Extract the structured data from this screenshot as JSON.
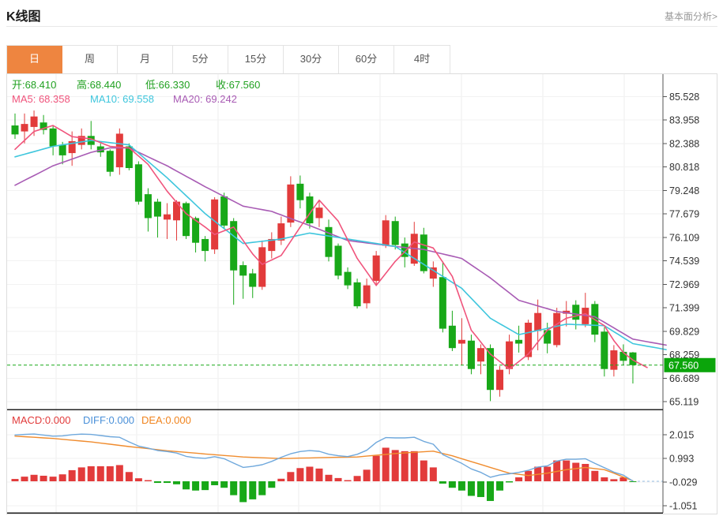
{
  "header": {
    "title": "K线图",
    "link": "基本面分析>"
  },
  "tabs": {
    "items": [
      "日",
      "周",
      "月",
      "5分",
      "15分",
      "30分",
      "60分",
      "4时"
    ],
    "selected_index": 0
  },
  "legend": {
    "ohlc": [
      {
        "label": "开:",
        "value": "68.410"
      },
      {
        "label": "高:",
        "value": "68.440"
      },
      {
        "label": "低:",
        "value": "66.330"
      },
      {
        "label": "收:",
        "value": "67.560"
      }
    ],
    "ma": [
      {
        "label": "MA5: ",
        "value": "68.358",
        "color": "#f0547c"
      },
      {
        "label": "MA10: ",
        "value": "69.558",
        "color": "#3ec6dd"
      },
      {
        "label": "MA20: ",
        "value": "69.242",
        "color": "#a85bb4"
      }
    ],
    "macd": [
      {
        "label": "MACD:",
        "value": "0.000",
        "color": "#e23b3b"
      },
      {
        "label": "DIFF:",
        "value": "0.000",
        "color": "#4a90d9"
      },
      {
        "label": "DEA:",
        "value": "0.000",
        "color": "#f0841e"
      }
    ]
  },
  "price_tag": {
    "value": "67.560",
    "bg": "#0ba50b"
  },
  "colors": {
    "up": "#e23b3b",
    "down": "#18a818",
    "ma5": "#f0547c",
    "ma10": "#3ec6dd",
    "ma20": "#a85bb4",
    "diff_line": "#6fa8dc",
    "dea_line": "#f08c2e",
    "ohlc_text": "#21a121",
    "axis": "#555555",
    "grid": "#ececec",
    "tab_active": "#ee8540",
    "dashed_price": "#18a818"
  },
  "chart_data": {
    "type": "candlestick+macd",
    "title": "K线图",
    "y_axis_labels": [
      "85.528",
      "83.958",
      "82.388",
      "80.818",
      "79.248",
      "77.679",
      "76.109",
      "74.539",
      "72.969",
      "71.399",
      "69.829",
      "68.259",
      "66.689",
      "65.119"
    ],
    "y_axis_top_value": 85.528,
    "y_axis_step": 1.5699,
    "macd_axis_labels": [
      "2.015",
      "0.993",
      "-0.029",
      "-1.051"
    ],
    "current_price": 67.56,
    "last_ohlc": {
      "open": 68.41,
      "high": 68.44,
      "low": 66.33,
      "close": 67.56
    },
    "candles": [
      [
        83.6,
        84.4,
        82.7,
        83.0
      ],
      [
        83.2,
        84.4,
        82.4,
        83.7
      ],
      [
        83.5,
        84.6,
        82.9,
        84.2
      ],
      [
        83.8,
        84.3,
        83.0,
        83.3
      ],
      [
        83.4,
        83.6,
        81.6,
        82.2
      ],
      [
        82.3,
        82.5,
        81.0,
        81.6
      ],
      [
        81.75,
        83.2,
        80.9,
        82.55
      ],
      [
        82.3,
        83.4,
        82.0,
        82.9
      ],
      [
        82.9,
        83.9,
        82.0,
        82.3
      ],
      [
        82.2,
        82.4,
        81.5,
        81.8
      ],
      [
        81.9,
        82.0,
        80.2,
        80.5
      ],
      [
        80.8,
        83.4,
        80.3,
        83.05
      ],
      [
        82.2,
        82.4,
        80.6,
        80.75
      ],
      [
        81.0,
        81.2,
        78.3,
        78.5
      ],
      [
        79.0,
        79.4,
        76.5,
        77.4
      ],
      [
        78.5,
        78.7,
        76.1,
        77.5
      ],
      [
        77.3,
        78.4,
        76.0,
        77.65
      ],
      [
        77.25,
        78.6,
        75.9,
        78.5
      ],
      [
        78.4,
        78.5,
        76.0,
        76.2
      ],
      [
        77.4,
        77.5,
        75.1,
        75.75
      ],
      [
        76.0,
        76.2,
        74.5,
        75.2
      ],
      [
        75.3,
        78.8,
        75.0,
        78.65
      ],
      [
        78.85,
        79.1,
        76.7,
        76.9
      ],
      [
        77.2,
        77.4,
        71.6,
        73.9
      ],
      [
        74.25,
        74.5,
        72.0,
        73.55
      ],
      [
        73.7,
        74.0,
        72.05,
        72.8
      ],
      [
        72.8,
        75.9,
        72.6,
        75.45
      ],
      [
        75.2,
        76.45,
        74.7,
        76.0
      ],
      [
        75.9,
        77.5,
        75.6,
        77.05
      ],
      [
        77.1,
        80.2,
        76.8,
        79.65
      ],
      [
        79.7,
        80.25,
        78.05,
        78.6
      ],
      [
        78.85,
        79.1,
        76.7,
        77.05
      ],
      [
        77.4,
        78.6,
        76.8,
        78.1
      ],
      [
        76.8,
        77.3,
        74.5,
        74.8
      ],
      [
        75.55,
        75.7,
        73.3,
        73.55
      ],
      [
        73.8,
        74.1,
        72.65,
        72.9
      ],
      [
        73.1,
        73.35,
        71.35,
        71.5
      ],
      [
        71.7,
        73.35,
        71.35,
        72.9
      ],
      [
        73.2,
        75.2,
        72.85,
        74.9
      ],
      [
        75.55,
        77.6,
        75.4,
        77.25
      ],
      [
        77.2,
        77.5,
        75.3,
        75.6
      ],
      [
        75.7,
        76.1,
        74.1,
        74.8
      ],
      [
        74.35,
        77.15,
        74.2,
        76.35
      ],
      [
        76.3,
        76.75,
        73.7,
        73.85
      ],
      [
        73.35,
        74.5,
        72.8,
        74.1
      ],
      [
        73.45,
        74.5,
        69.75,
        70.0
      ],
      [
        70.2,
        71.2,
        68.5,
        68.7
      ],
      [
        69.0,
        70.7,
        67.55,
        69.25
      ],
      [
        69.2,
        69.6,
        66.95,
        67.3
      ],
      [
        67.8,
        68.95,
        66.95,
        68.7
      ],
      [
        68.7,
        68.95,
        65.15,
        65.9
      ],
      [
        65.9,
        67.5,
        65.45,
        67.25
      ],
      [
        67.3,
        69.6,
        66.95,
        69.15
      ],
      [
        69.25,
        70.2,
        68.4,
        69.0
      ],
      [
        68.1,
        70.6,
        67.9,
        70.4
      ],
      [
        69.85,
        71.95,
        68.55,
        71.05
      ],
      [
        69.9,
        70.4,
        68.35,
        69.0
      ],
      [
        68.9,
        71.4,
        68.75,
        71.05
      ],
      [
        71.0,
        71.85,
        70.15,
        71.2
      ],
      [
        71.6,
        71.9,
        69.95,
        70.6
      ],
      [
        70.3,
        72.4,
        70.1,
        71.4
      ],
      [
        71.65,
        71.85,
        69.1,
        69.6
      ],
      [
        69.8,
        70.1,
        66.8,
        67.3
      ],
      [
        67.25,
        68.9,
        66.8,
        68.55
      ],
      [
        68.45,
        68.95,
        67.55,
        67.85
      ],
      [
        68.41,
        68.44,
        66.33,
        67.56
      ]
    ],
    "ma5_anchors": [
      [
        0,
        82.0
      ],
      [
        2,
        83.2
      ],
      [
        4,
        83.6
      ],
      [
        6,
        82.85
      ],
      [
        8,
        82.7
      ],
      [
        10,
        82.2
      ],
      [
        12,
        82.1
      ],
      [
        14,
        81.0
      ],
      [
        16,
        79.2
      ],
      [
        18,
        77.7
      ],
      [
        20,
        76.8
      ],
      [
        21,
        76.3
      ],
      [
        23,
        76.8
      ],
      [
        25,
        75.0
      ],
      [
        26,
        74.3
      ],
      [
        28,
        74.9
      ],
      [
        30,
        76.8
      ],
      [
        32,
        78.6
      ],
      [
        34,
        77.2
      ],
      [
        36,
        74.7
      ],
      [
        38,
        72.9
      ],
      [
        40,
        74.5
      ],
      [
        42,
        75.8
      ],
      [
        44,
        75.4
      ],
      [
        46,
        73.5
      ],
      [
        48,
        69.9
      ],
      [
        50,
        68.3
      ],
      [
        52,
        67.3
      ],
      [
        54,
        68.3
      ],
      [
        56,
        69.9
      ],
      [
        58,
        70.7
      ],
      [
        60,
        71.0
      ],
      [
        62,
        70.2
      ],
      [
        63,
        69.2
      ],
      [
        64,
        68.4
      ],
      [
        65,
        67.9
      ],
      [
        66.5,
        67.4
      ]
    ],
    "ma10_anchors": [
      [
        0,
        81.5
      ],
      [
        4,
        82.2
      ],
      [
        8,
        82.6
      ],
      [
        12,
        82.3
      ],
      [
        16,
        80.1
      ],
      [
        20,
        77.7
      ],
      [
        24,
        75.7
      ],
      [
        28,
        76.0
      ],
      [
        31,
        76.4
      ],
      [
        36,
        75.9
      ],
      [
        40,
        75.5
      ],
      [
        43,
        74.3
      ],
      [
        47,
        72.7
      ],
      [
        50,
        70.7
      ],
      [
        53,
        69.6
      ],
      [
        58,
        70.3
      ],
      [
        62,
        70.2
      ],
      [
        65,
        69.0
      ],
      [
        68.5,
        68.6
      ]
    ],
    "ma20_anchors": [
      [
        0,
        79.6
      ],
      [
        4,
        80.9
      ],
      [
        8,
        81.8
      ],
      [
        10,
        82.1
      ],
      [
        12,
        82.1
      ],
      [
        16,
        80.9
      ],
      [
        20,
        79.5
      ],
      [
        24,
        78.2
      ],
      [
        27,
        77.85
      ],
      [
        31,
        76.9
      ],
      [
        35,
        75.9
      ],
      [
        40,
        75.5
      ],
      [
        43,
        75.3
      ],
      [
        47,
        74.7
      ],
      [
        50,
        73.4
      ],
      [
        53,
        71.9
      ],
      [
        57,
        71.15
      ],
      [
        61,
        70.8
      ],
      [
        65,
        69.3
      ],
      [
        68.5,
        68.9
      ]
    ],
    "macd_hist": [
      0.1,
      0.2,
      0.28,
      0.24,
      0.2,
      0.3,
      0.48,
      0.6,
      0.65,
      0.65,
      0.65,
      0.7,
      0.4,
      0.13,
      0.05,
      -0.07,
      -0.07,
      -0.13,
      -0.35,
      -0.4,
      -0.38,
      -0.17,
      -0.28,
      -0.6,
      -0.9,
      -0.78,
      -0.6,
      -0.28,
      0.11,
      0.4,
      0.57,
      0.63,
      0.55,
      0.28,
      0.14,
      0.05,
      0.23,
      0.5,
      1.1,
      1.45,
      1.35,
      1.3,
      1.3,
      0.9,
      0.6,
      -0.1,
      -0.28,
      -0.4,
      -0.63,
      -0.68,
      -0.85,
      -0.4,
      -0.05,
      0.17,
      0.45,
      0.63,
      0.63,
      0.9,
      0.9,
      0.8,
      0.75,
      0.45,
      0.17,
      0.09,
      0.17,
      -0.02
    ],
    "dea_anchors": [
      [
        0,
        1.95
      ],
      [
        4,
        1.85
      ],
      [
        8,
        1.7
      ],
      [
        12,
        1.5
      ],
      [
        16,
        1.32
      ],
      [
        20,
        1.18
      ],
      [
        24,
        1.05
      ],
      [
        28,
        0.98
      ],
      [
        32,
        1.02
      ],
      [
        36,
        1.05
      ],
      [
        40,
        1.2
      ],
      [
        44,
        1.3
      ],
      [
        46,
        1.1
      ],
      [
        48,
        0.85
      ],
      [
        50,
        0.6
      ],
      [
        52,
        0.35
      ],
      [
        54,
        0.25
      ],
      [
        56,
        0.35
      ],
      [
        58,
        0.5
      ],
      [
        60,
        0.6
      ],
      [
        62,
        0.5
      ],
      [
        63,
        0.35
      ],
      [
        64,
        0.18
      ],
      [
        65,
        0.02
      ]
    ]
  }
}
